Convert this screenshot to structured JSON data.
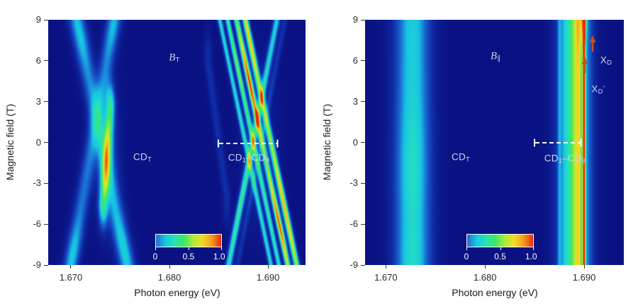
{
  "chart_data": {
    "type": "heatmap",
    "description": "Two magneto-photoluminescence intensity maps vs photon energy and magnetic field",
    "colors": {
      "background_zero": "#0a1283",
      "annotation": "#ccd4ef",
      "dash": "#ffffff",
      "arrow": "#c85014",
      "axis_text": "#2b2b2b"
    },
    "colormap_stops": [
      {
        "v": 0.0,
        "c": "#0a1283"
      },
      {
        "v": 0.1,
        "c": "#0f2da8"
      },
      {
        "v": 0.22,
        "c": "#1b63cf"
      },
      {
        "v": 0.34,
        "c": "#17c3e4"
      },
      {
        "v": 0.46,
        "c": "#25e0c0"
      },
      {
        "v": 0.58,
        "c": "#3ce868"
      },
      {
        "v": 0.7,
        "c": "#a8ec38"
      },
      {
        "v": 0.8,
        "c": "#f2dc26"
      },
      {
        "v": 0.9,
        "c": "#f59a1c"
      },
      {
        "v": 1.0,
        "c": "#e52c0c"
      }
    ],
    "colorbar": {
      "labels": [
        "0",
        "0.5",
        "1.0"
      ],
      "gradient": [
        "#2a68cd",
        "#14c9e4",
        "#27e2b2",
        "#3de766",
        "#abec38",
        "#f2dc26",
        "#f59a1c",
        "#e52c0c"
      ]
    },
    "panels": [
      {
        "id": "left",
        "field_label": {
          "main": "B",
          "sub": "T"
        },
        "cdt_label": {
          "main": "CD",
          "sub": "T"
        },
        "cd19_label": {
          "m1": "CD",
          "s1": "1",
          "dash": "–",
          "m2": "CD",
          "s2": "9"
        },
        "xlabel": "Photon energy (eV)",
        "ylabel": "Magnetic field (T)",
        "x_ticks": {
          "values": [
            1.67,
            1.68,
            1.69
          ],
          "labels": [
            "1.670",
            "1.680",
            "1.690"
          ]
        },
        "y_ticks": {
          "values": [
            9,
            6,
            3,
            0,
            -3,
            -6,
            -9
          ],
          "labels": [
            "9",
            "6",
            "3",
            "0",
            "-3",
            "-6",
            "-9"
          ]
        },
        "e_range": [
          1.6677,
          1.6938
        ],
        "b_range": [
          -9,
          9
        ],
        "features": [
          {
            "type": "line",
            "e1": 1.6706,
            "b1": 9,
            "e2": 1.6757,
            "b2": -9,
            "sigma": 0.00055,
            "amp": 0.26,
            "hot": [
              {
                "b": 8.0,
                "sb": 1.6,
                "amp": 0.1
              },
              {
                "b": -7.8,
                "sb": 1.8,
                "amp": 0.13
              }
            ]
          },
          {
            "type": "line",
            "e1": 1.6744,
            "b1": 9,
            "e2": 1.67,
            "b2": -9,
            "sigma": 0.0005,
            "amp": 0.24,
            "hot": [
              {
                "b": 8.4,
                "sb": 1.3,
                "amp": 0.1
              },
              {
                "b": -8.2,
                "sb": 1.5,
                "amp": 0.13
              }
            ]
          },
          {
            "type": "line",
            "e1": 1.674,
            "b1": 2.6,
            "e2": 1.67328,
            "b2": -4.6,
            "sigma": 0.00032,
            "amp": 0.44,
            "end_sb": 1.1,
            "hot": [
              {
                "b": -1.0,
                "sb": 2.0,
                "amp": 0.13
              }
            ]
          },
          {
            "type": "blob",
            "e": 1.6737,
            "b": -1.0,
            "se": 0.00085,
            "sb": 3.2,
            "amp": 0.14
          },
          {
            "type": "line",
            "e1": 1.6851,
            "b1": 9,
            "e2": 1.6903,
            "b2": -9,
            "sigma": 0.00017,
            "amp": 0.42
          },
          {
            "type": "line",
            "e1": 1.6859,
            "b1": 9,
            "e2": 1.6911,
            "b2": -9,
            "sigma": 0.00017,
            "amp": 0.48,
            "hot": [
              {
                "b": 5.5,
                "sb": 2.0,
                "amp": 0.16
              }
            ]
          },
          {
            "type": "line",
            "e1": 1.6868,
            "b1": 9,
            "e2": 1.692,
            "b2": -9,
            "sigma": 0.00019,
            "amp": 0.55,
            "hot": [
              {
                "b": 4.5,
                "sb": 2.4,
                "amp": 0.42
              },
              {
                "b": -6.0,
                "sb": 2.2,
                "amp": 0.42
              }
            ]
          },
          {
            "type": "line",
            "e1": 1.6877,
            "b1": 9,
            "e2": 1.6929,
            "b2": -9,
            "sigma": 0.0002,
            "amp": 0.62,
            "hot": [
              {
                "b": 7.5,
                "sb": 2.0,
                "amp": 0.22
              },
              {
                "b": -5.0,
                "sb": 2.6,
                "amp": 0.25
              }
            ]
          },
          {
            "type": "line",
            "e1": 1.6909,
            "b1": 9,
            "e2": 1.686,
            "b2": -9,
            "sigma": 0.00022,
            "amp": 0.4,
            "hot": [
              {
                "b": -5.0,
                "sb": 3.0,
                "amp": 0.12
              }
            ]
          },
          {
            "type": "line",
            "e1": 1.6917,
            "b1": 9,
            "e2": 1.6869,
            "b2": -9,
            "sigma": 0.0002,
            "amp": 0.11
          },
          {
            "type": "line",
            "e1": 1.6839,
            "b1": 6,
            "e2": 1.6858,
            "b2": -4,
            "sigma": 0.00028,
            "amp": 0.1,
            "end_sb": 1.5
          },
          {
            "type": "blob",
            "e": 1.689,
            "b": 0.0,
            "se": 0.0012,
            "sb": 4.0,
            "amp": 0.08
          }
        ]
      },
      {
        "id": "right",
        "field_label": {
          "main": "B",
          "sub": "∥"
        },
        "cdt_label": {
          "main": "CD",
          "sub": "T"
        },
        "cd19_label": {
          "m1": "CD",
          "s1": "1",
          "dash": "–",
          "m2": "CD",
          "s2": "9"
        },
        "xd_label": {
          "main": "X",
          "sub": "D"
        },
        "xdp_label": {
          "main": "X",
          "sub": "D",
          "prime": "′"
        },
        "xlabel": "Photon energy (eV)",
        "ylabel": "Magnetic field (T)",
        "x_ticks": {
          "values": [
            1.67,
            1.68,
            1.69
          ],
          "labels": [
            "1.670",
            "1.680",
            "1.690"
          ]
        },
        "y_ticks": {
          "values": [
            9,
            6,
            3,
            0,
            -3,
            -6,
            -9
          ],
          "labels": [
            "9",
            "6",
            "3",
            "0",
            "-3",
            "-6",
            "-9"
          ]
        },
        "e_range": [
          1.6679,
          1.694
        ],
        "b_range": [
          -9,
          9
        ],
        "features": [
          {
            "type": "vband",
            "e": 1.6727,
            "sigma": 0.0012,
            "amp": 0.38,
            "hot": [
              {
                "b": -2.0,
                "sb": 3.2,
                "amp": 0.07
              },
              {
                "b": -8.4,
                "sb": 1.6,
                "amp": 0.05
              }
            ]
          },
          {
            "type": "vband",
            "e": 1.6889,
            "sigma": 0.0011,
            "amp": 0.36
          },
          {
            "type": "vband",
            "e": 1.6891,
            "sigma": 0.00045,
            "amp": 0.25
          },
          {
            "type": "vband",
            "e": 1.68945,
            "sigma": 0.00028,
            "amp": 0.28,
            "hot": [
              {
                "b": 8.6,
                "sb": 1.5,
                "amp": 0.05
              }
            ]
          },
          {
            "type": "vband",
            "e": 1.69,
            "sigma": 0.0001,
            "amp": 0.9
          },
          {
            "type": "blob",
            "e": 1.68995,
            "b": 8.9,
            "se": 0.0002,
            "sb": 1.0,
            "amp": 0.35
          },
          {
            "type": "vband",
            "e": 1.6875,
            "sigma": 0.00013,
            "amp": 0.14
          },
          {
            "type": "vband",
            "e": 1.6882,
            "sigma": 0.0004,
            "amp": 0.1
          },
          {
            "type": "vband",
            "e": 1.6903,
            "sigma": 0.00045,
            "amp": 0.1
          }
        ]
      }
    ]
  }
}
